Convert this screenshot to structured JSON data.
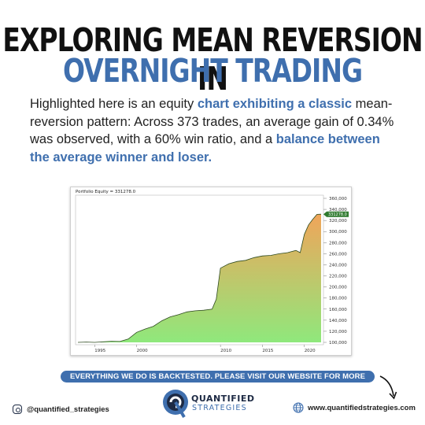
{
  "header": {
    "title_line1": "EXPLORING MEAN REVERSION IN",
    "title_line2": "OVERNIGHT TRADING"
  },
  "intro": {
    "part1": "Highlighted here is an equity ",
    "highlight1": "chart exhibiting a classic",
    "part2": " mean-reversion pattern: Across 373 trades, an average gain of 0.34% was observed, with a 60% win ratio, and a ",
    "highlight2": "balance between the average winner and loser."
  },
  "chart_data": {
    "type": "area",
    "title": "Portfolio Equity = 331278.0",
    "current_value_label": "331278.0",
    "x_ticks": [
      "1995",
      "2000",
      "2010",
      "2015",
      "2020"
    ],
    "y_ticks": [
      "100,000",
      "120,000",
      "140,000",
      "160,000",
      "180,000",
      "200,000",
      "220,000",
      "240,000",
      "260,000",
      "280,000",
      "300,000",
      "320,000",
      "340,000",
      "360,000"
    ],
    "ylim": [
      100000,
      360000
    ],
    "xlim": [
      1993,
      2022
    ],
    "x": [
      1993,
      1994,
      1995,
      1996,
      1997,
      1998,
      1999,
      2000,
      2001,
      2002,
      2003,
      2004,
      2005,
      2006,
      2007,
      2008,
      2009,
      2009.5,
      2010,
      2011,
      2012,
      2013,
      2014,
      2015,
      2016,
      2017,
      2018,
      2019,
      2019.5,
      2020,
      2020.5,
      2021,
      2021.5,
      2022
    ],
    "values": [
      100000,
      100500,
      100000,
      101000,
      102000,
      101500,
      106000,
      118000,
      124000,
      129000,
      139000,
      146000,
      150000,
      155000,
      157000,
      158000,
      160000,
      178000,
      234000,
      242000,
      246000,
      248000,
      253000,
      256000,
      257000,
      260000,
      262000,
      266000,
      262000,
      295000,
      312000,
      322000,
      331000,
      331278
    ],
    "grid": false,
    "legend": "top-left",
    "colors": {
      "top": "#f0a55a",
      "bottom": "#8fe87c"
    }
  },
  "banner": {
    "text": "EVERYTHING WE DO IS BACKTESTED. PLEASE VISIT OUR WEBSITE FOR MORE INFO"
  },
  "footer": {
    "instagram_handle": "@quantified_strategies",
    "logo_word1": "QUANTIFIED",
    "logo_word2": "STRATEGIES",
    "website": "www.quantifiedstrategies.com"
  },
  "icons": {
    "instagram": "instagram-icon",
    "globe": "globe-icon",
    "arrow": "curved-arrow-icon",
    "logo": "quantified-strategies-logo"
  }
}
